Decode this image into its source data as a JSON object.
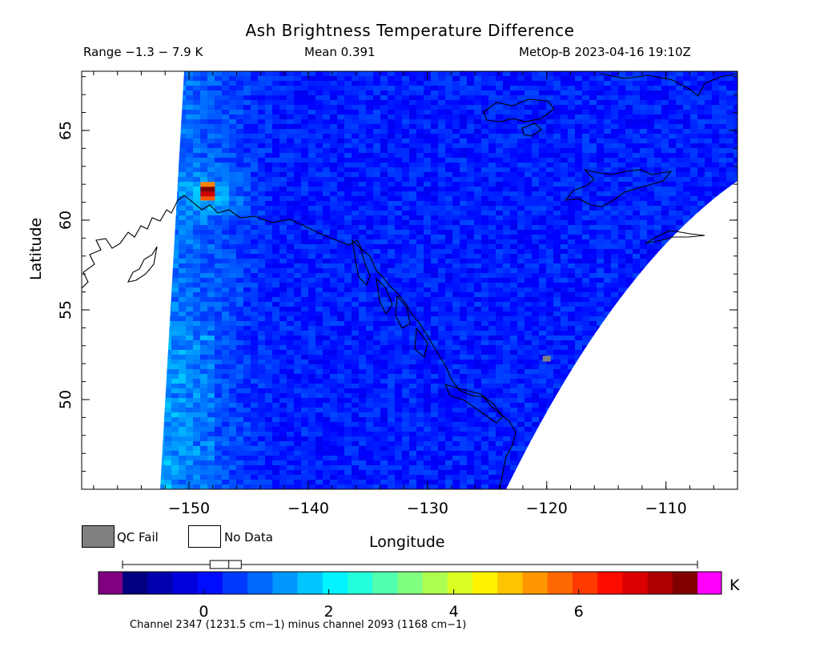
{
  "header": {
    "title": "Ash Brightness Temperature Difference",
    "range": "Range −1.3 − 7.9 K",
    "mean": "Mean 0.391",
    "satellite": "MetOp-B 2023-04-16 19:10Z"
  },
  "axes": {
    "xlabel": "Longitude",
    "ylabel": "Latitude",
    "lon_range": [
      -159,
      -104
    ],
    "lat_range": [
      45,
      68.3
    ],
    "lon_ticks": [
      -150,
      -140,
      -130,
      -120,
      -110
    ],
    "lat_ticks": [
      50,
      55,
      60,
      65
    ]
  },
  "legend": {
    "qc_fail": "QC Fail",
    "no_data": "No Data",
    "qc_color": "#808080",
    "no_data_color": "#ffffff"
  },
  "colorbar": {
    "unit": "K",
    "min": -1.3,
    "max": 7.9,
    "ticks": [
      0,
      2,
      4,
      6
    ],
    "under_color": "#800080",
    "over_color": "#ff00ff",
    "boxplot": {
      "whisker_low": -1.3,
      "q1": 0.1,
      "median": 0.4,
      "q3": 0.6,
      "whisker_high": 7.9
    }
  },
  "footer": {
    "channel": "Channel 2347 (1231.5 cm−1) minus channel 2093 (1168 cm−1)"
  },
  "map_data": {
    "hotspot": {
      "lon": -148.5,
      "lat": 61.5,
      "peak_value": 7.9
    },
    "qc_fail_pixel": {
      "lon": -120,
      "lat": 52.3
    }
  }
}
